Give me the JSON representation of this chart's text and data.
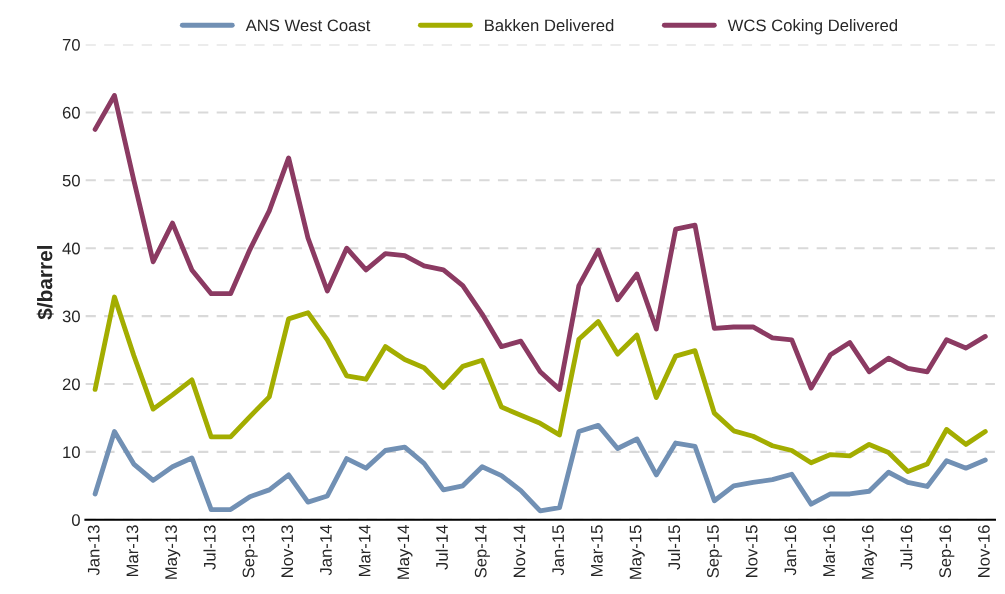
{
  "chart_data": {
    "type": "line",
    "ylabel": "$/barrel",
    "categories": [
      "Jan-13",
      null,
      "Mar-13",
      null,
      "May-13",
      null,
      "Jul-13",
      null,
      "Sep-13",
      null,
      "Nov-13",
      null,
      "Jan-14",
      null,
      "Mar-14",
      null,
      "May-14",
      null,
      "Jul-14",
      null,
      "Sep-14",
      null,
      "Nov-14",
      null,
      "Jan-15",
      null,
      "Mar-15",
      null,
      "May-15",
      null,
      "Jul-15",
      null,
      "Sep-15",
      null,
      "Nov-15",
      null,
      "Jan-16",
      null,
      "Mar-16",
      null,
      "May-16",
      null,
      "Jul-16",
      null,
      "Sep-16",
      null,
      "Nov-16"
    ],
    "series": [
      {
        "name": "ANS West Coast",
        "color": "#7190b4",
        "values": [
          3.8,
          13,
          8.2,
          5.8,
          7.8,
          9.1,
          1.5,
          1.5,
          3.4,
          4.4,
          6.6,
          2.6,
          3.5,
          9,
          7.6,
          10.2,
          10.7,
          8.3,
          4.4,
          5,
          7.8,
          6.5,
          4.3,
          1.3,
          1.8,
          13,
          13.9,
          10.5,
          11.9,
          6.6,
          11.3,
          10.8,
          2.8,
          5,
          5.5,
          5.9,
          6.7,
          2.3,
          3.8,
          3.8,
          4.2,
          7,
          5.5,
          4.9,
          8.7,
          7.6,
          8.8
        ]
      },
      {
        "name": "Bakken Delivered",
        "color": "#a3ad00",
        "values": [
          19.2,
          32.8,
          24.2,
          16.3,
          18.4,
          20.6,
          12.2,
          12.2,
          15.2,
          18.1,
          29.6,
          30.5,
          26.5,
          21.2,
          20.7,
          25.5,
          23.6,
          22.4,
          19.5,
          22.6,
          23.5,
          16.6,
          15.4,
          14.2,
          12.5,
          26.6,
          29.2,
          24.4,
          27.2,
          18,
          24.1,
          24.9,
          15.7,
          13.1,
          12.3,
          10.9,
          10.2,
          8.4,
          9.6,
          9.4,
          11.1,
          9.9,
          7.1,
          8.2,
          13.3,
          11.1,
          13
        ]
      },
      {
        "name": "WCS Coking Delivered",
        "color": "#8b3a62",
        "values": [
          57.5,
          62.5,
          50,
          38,
          43.7,
          36.8,
          33.3,
          33.3,
          39.8,
          45.5,
          53.3,
          41.5,
          33.7,
          40,
          36.8,
          39.2,
          38.9,
          37.4,
          36.8,
          34.5,
          30.3,
          25.5,
          26.3,
          21.8,
          19.2,
          34.5,
          39.7,
          32.4,
          36.2,
          28.1,
          42.8,
          43.4,
          28.2,
          28.4,
          28.4,
          26.8,
          26.5,
          19.4,
          24.3,
          26.1,
          21.8,
          23.8,
          22.3,
          21.8,
          26.5,
          25.3,
          27
        ]
      }
    ],
    "ylim": [
      0,
      70
    ],
    "yticks": [
      0,
      10,
      20,
      30,
      40,
      50,
      60,
      70
    ],
    "grid": "y",
    "legend": "top",
    "marker": "none",
    "line_style": "solid"
  }
}
